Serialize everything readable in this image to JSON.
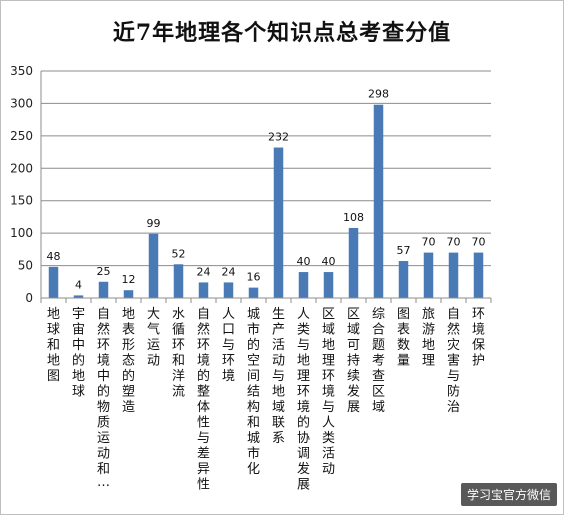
{
  "chart_data": {
    "type": "bar",
    "title": "近7年地理各个知识点总考查分值",
    "xlabel": "",
    "ylabel": "",
    "ylim": [
      0,
      350
    ],
    "yticks": [
      0,
      50,
      100,
      150,
      200,
      250,
      300,
      350
    ],
    "grid": true,
    "legend": "none",
    "bar_color": "#4a7ab5",
    "categories": [
      "地球和地图",
      "宇宙中的地球",
      "自然环境中的物质运动和…",
      "地表形态的塑造",
      "大气运动",
      "水循环和洋流",
      "自然环境的整体性与差异性",
      "人口与环境",
      "城市的空间结构和城市化",
      "生产活动与地域联系",
      "人类与地理环境的协调发展",
      "区域地理环境与人类活动",
      "区域可持续发展",
      "综合题考查区域",
      "图表数量",
      "旅游地理",
      "自然灾害与防治",
      "环境保护"
    ],
    "values": [
      48,
      4,
      25,
      12,
      99,
      52,
      24,
      24,
      16,
      232,
      40,
      40,
      108,
      298,
      57,
      70,
      70,
      70
    ]
  },
  "watermark": "学习宝官方微信"
}
